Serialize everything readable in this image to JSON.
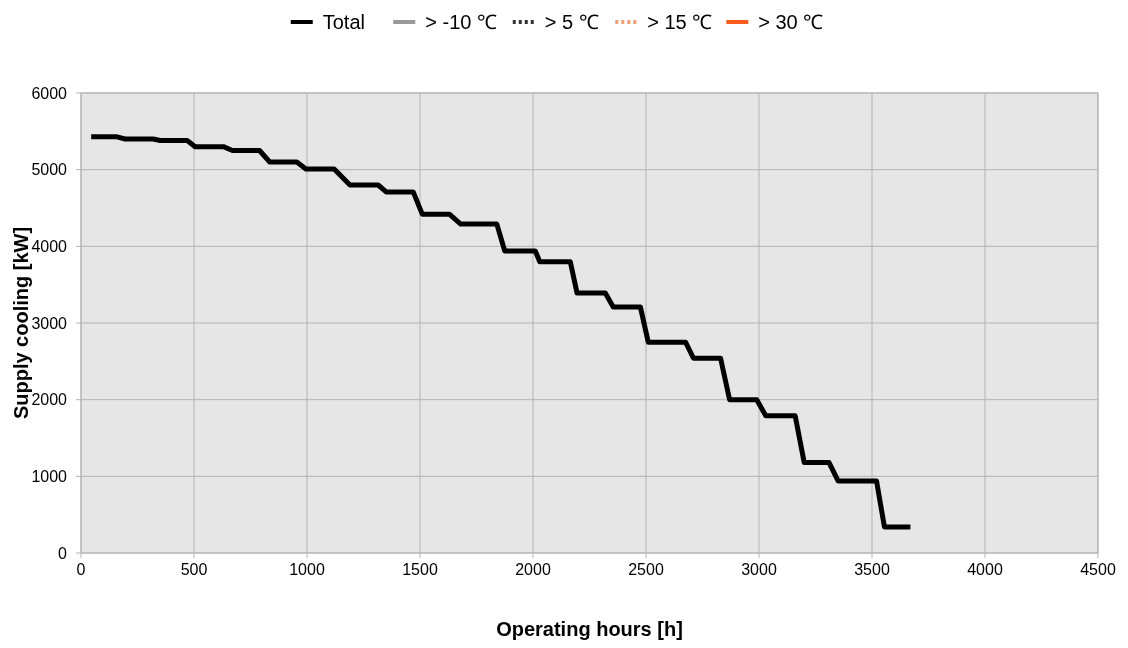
{
  "chart_data": {
    "type": "line",
    "xlabel": "Operating hours [h]",
    "ylabel": "Supply cooling [kW]",
    "xlim": [
      0,
      4500
    ],
    "ylim": [
      0,
      6000
    ],
    "xticks": [
      0,
      500,
      1000,
      1500,
      2000,
      2500,
      3000,
      3500,
      4000,
      4500
    ],
    "yticks": [
      0,
      1000,
      2000,
      3000,
      4000,
      5000,
      6000
    ],
    "grid": true,
    "legend": "top",
    "marker": "none",
    "series": [
      {
        "name": "Total",
        "color": "#000000",
        "line_style": "solid",
        "x": [
          45,
          155,
          195,
          320,
          350,
          470,
          505,
          630,
          670,
          790,
          835,
          955,
          995,
          1120,
          1190,
          1315,
          1350,
          1470,
          1510,
          1630,
          1680,
          1840,
          1875,
          2010,
          2030,
          2165,
          2195,
          2320,
          2355,
          2475,
          2510,
          2675,
          2710,
          2830,
          2870,
          2990,
          3030,
          3160,
          3200,
          3310,
          3350,
          3520,
          3555,
          3670
        ],
        "values": [
          5430,
          5430,
          5400,
          5400,
          5380,
          5380,
          5300,
          5300,
          5250,
          5250,
          5100,
          5100,
          5010,
          5010,
          4800,
          4800,
          4710,
          4710,
          4420,
          4420,
          4290,
          4290,
          3940,
          3940,
          3800,
          3800,
          3390,
          3390,
          3210,
          3210,
          2750,
          2750,
          2540,
          2540,
          2000,
          2000,
          1790,
          1790,
          1180,
          1180,
          940,
          940,
          340,
          340
        ]
      },
      {
        "name": "> -10 ℃",
        "color": "#999999",
        "line_style": "solid"
      },
      {
        "name": "> 5 ℃",
        "color": "#333333",
        "line_style": "dotted"
      },
      {
        "name": "> 15 ℃",
        "color": "#ff9966",
        "line_style": "dotted"
      },
      {
        "name": "> 30 ℃",
        "color": "#ff5a1e",
        "line_style": "solid"
      }
    ]
  }
}
